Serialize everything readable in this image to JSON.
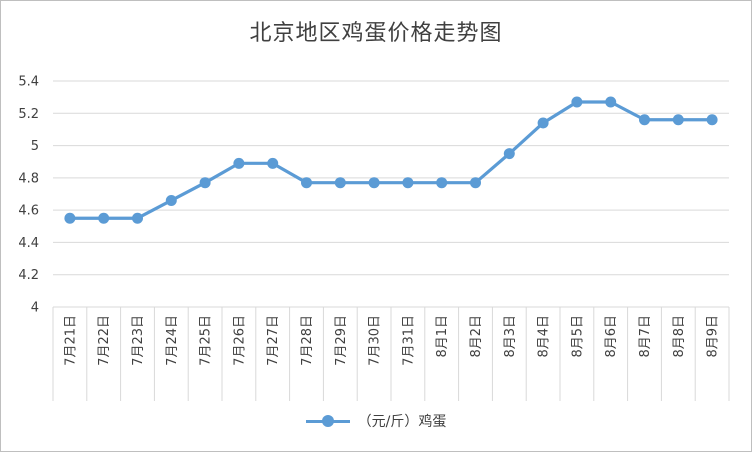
{
  "chart_data": {
    "type": "line",
    "title": "北京地区鸡蛋价格走势图",
    "categories": [
      "7月21日",
      "7月22日",
      "7月23日",
      "7月24日",
      "7月25日",
      "7月26日",
      "7月27日",
      "7月28日",
      "7月29日",
      "7月30日",
      "7月31日",
      "8月1日",
      "8月2日",
      "8月3日",
      "8月4日",
      "8月5日",
      "8月6日",
      "8月7日",
      "8月8日",
      "8月9日"
    ],
    "series": [
      {
        "name": "（元/斤）鸡蛋",
        "color": "#5b9bd5",
        "values": [
          4.55,
          4.55,
          4.55,
          4.66,
          4.77,
          4.89,
          4.89,
          4.77,
          4.77,
          4.77,
          4.77,
          4.77,
          4.77,
          4.95,
          5.14,
          5.27,
          5.27,
          5.16,
          5.16,
          5.16
        ]
      }
    ],
    "yticks": [
      "4",
      "4.2",
      "4.4",
      "4.6",
      "4.8",
      "5",
      "5.2",
      "5.4"
    ],
    "ylim": [
      4,
      5.4
    ],
    "grid": true,
    "legend_position": "bottom"
  }
}
